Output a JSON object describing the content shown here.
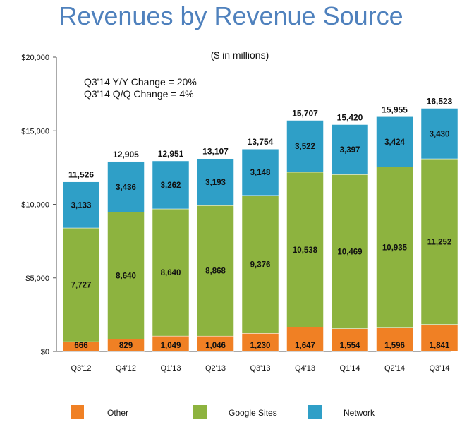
{
  "chart_data": {
    "type": "bar",
    "stacked": true,
    "title": "Revenues by Revenue Source",
    "subtitle": "($ in millions)",
    "annotations": [
      "Q3'14 Y/Y Change = 20%",
      "Q3'14 Q/Q Change = 4%"
    ],
    "categories": [
      "Q3'12",
      "Q4'12",
      "Q1'13",
      "Q2'13",
      "Q3'13",
      "Q4'13",
      "Q1'14",
      "Q2'14",
      "Q3'14"
    ],
    "series": [
      {
        "name": "Other",
        "color": "#f08024",
        "values": [
          666,
          829,
          1049,
          1046,
          1230,
          1647,
          1554,
          1596,
          1841
        ],
        "labels": [
          "666",
          "829",
          "1,049",
          "1,046",
          "1,230",
          "1,647",
          "1,554",
          "1,596",
          "1,841"
        ]
      },
      {
        "name": "Google Sites",
        "color": "#8db33f",
        "values": [
          7727,
          8640,
          8640,
          8868,
          9376,
          10538,
          10469,
          10935,
          11252
        ],
        "labels": [
          "7,727",
          "8,640",
          "8,640",
          "8,868",
          "9,376",
          "10,538",
          "10,469",
          "10,935",
          "11,252"
        ]
      },
      {
        "name": "Network",
        "color": "#2f9fc7",
        "values": [
          3133,
          3436,
          3262,
          3193,
          3148,
          3522,
          3397,
          3424,
          3430
        ],
        "labels": [
          "3,133",
          "3,436",
          "3,262",
          "3,193",
          "3,148",
          "3,522",
          "3,397",
          "3,424",
          "3,430"
        ]
      }
    ],
    "totals": [
      "11,526",
      "12,905",
      "12,951",
      "13,107",
      "13,754",
      "15,707",
      "15,420",
      "15,955",
      "16,523"
    ],
    "ylim": [
      0,
      20000
    ],
    "yticks": [
      0,
      5000,
      10000,
      15000,
      20000
    ],
    "ytick_labels": [
      "$0",
      "$5,000",
      "$10,000",
      "$15,000",
      "$20,000"
    ],
    "grid": false,
    "legend_position": "bottom"
  }
}
